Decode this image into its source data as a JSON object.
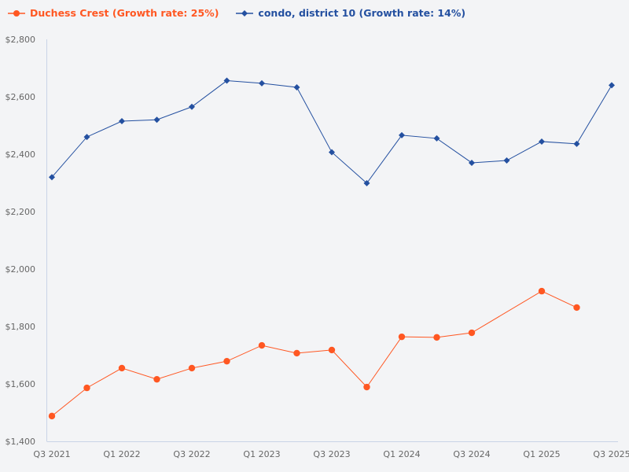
{
  "chart_data": {
    "type": "line",
    "title": "",
    "xlabel": "",
    "ylabel": "",
    "x": [
      "Q3 2021",
      "Q4 2021",
      "Q1 2022",
      "Q2 2022",
      "Q3 2022",
      "Q4 2022",
      "Q1 2023",
      "Q2 2023",
      "Q3 2023",
      "Q4 2023",
      "Q1 2024",
      "Q2 2024",
      "Q3 2024",
      "Q4 2024",
      "Q1 2025",
      "Q2 2025",
      "Q3 2025"
    ],
    "xticks": [
      "Q3 2021",
      "Q1 2022",
      "Q3 2022",
      "Q1 2023",
      "Q3 2023",
      "Q1 2024",
      "Q3 2024",
      "Q1 2025",
      "Q3 2025"
    ],
    "ylim": [
      1400,
      2800
    ],
    "yticks": [
      "$1,400",
      "$1,600",
      "$1,800",
      "$2,000",
      "$2,200",
      "$2,400",
      "$2,600",
      "$2,800"
    ],
    "grid": false,
    "legend_position": "top-left",
    "series": [
      {
        "name": "Duchess Crest (Growth rate: 25%)",
        "color": "#ff5722",
        "marker": "circle",
        "values": [
          1488,
          1586,
          1655,
          1616,
          1655,
          1679,
          1734,
          1707,
          1718,
          1589,
          1764,
          1762,
          1778,
          null,
          1923,
          1866,
          null
        ]
      },
      {
        "name": "condo, district 10 (Growth rate: 14%)",
        "color": "#2450a0",
        "marker": "diamond",
        "values": [
          2320,
          2460,
          2515,
          2520,
          2565,
          2656,
          2647,
          2633,
          2407,
          2299,
          2466,
          2455,
          2370,
          2378,
          2444,
          2436,
          2640
        ]
      }
    ],
    "axis_color": "#c9d4e6"
  }
}
